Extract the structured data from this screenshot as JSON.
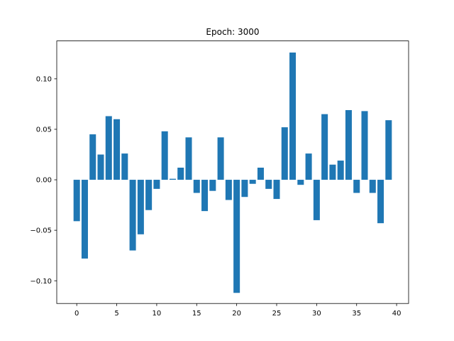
{
  "chart_data": {
    "type": "bar",
    "title": "Epoch: 3000",
    "xlabel": "",
    "ylabel": "",
    "xlim": [
      -2.5,
      41.5
    ],
    "ylim": [
      -0.1225,
      0.1375
    ],
    "xticks": [
      0,
      5,
      10,
      15,
      20,
      25,
      30,
      35,
      40
    ],
    "yticks": [
      -0.1,
      -0.05,
      0.0,
      0.05,
      0.1
    ],
    "ytick_labels": [
      "−0.10",
      "−0.05",
      "0.00",
      "0.05",
      "0.10"
    ],
    "grid": false,
    "bar_color": "#1f77b4",
    "x": [
      0,
      1,
      2,
      3,
      4,
      5,
      6,
      7,
      8,
      9,
      10,
      11,
      12,
      13,
      14,
      15,
      16,
      17,
      18,
      19,
      20,
      21,
      22,
      23,
      24,
      25,
      26,
      27,
      28,
      29,
      30,
      31,
      32,
      33,
      34,
      35,
      36,
      37,
      38,
      39
    ],
    "values": [
      -0.041,
      -0.078,
      0.045,
      0.025,
      0.063,
      0.06,
      0.026,
      -0.07,
      -0.054,
      -0.03,
      -0.009,
      0.048,
      0.001,
      0.012,
      0.042,
      -0.013,
      -0.031,
      -0.011,
      0.042,
      -0.02,
      -0.112,
      -0.017,
      -0.004,
      0.012,
      -0.009,
      -0.019,
      0.052,
      0.126,
      -0.005,
      0.026,
      -0.04,
      0.065,
      0.015,
      0.019,
      0.069,
      -0.013,
      0.068,
      -0.013,
      -0.043,
      0.059
    ]
  }
}
